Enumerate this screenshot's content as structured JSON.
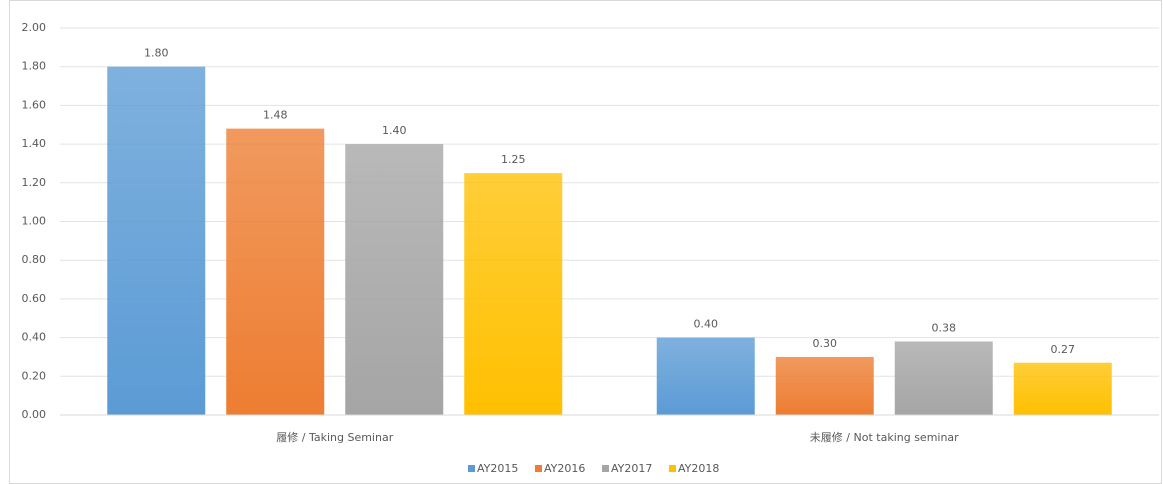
{
  "chart_data": {
    "type": "bar",
    "categories": [
      "履修 / Taking Seminar",
      "未履修 / Not taking seminar"
    ],
    "series": [
      {
        "name": "AY2015",
        "color": "#5b9bd5",
        "values": [
          1.8,
          0.4
        ],
        "value_labels": [
          "1.80",
          "0.40"
        ]
      },
      {
        "name": "AY2016",
        "color": "#ed7d31",
        "values": [
          1.48,
          0.3
        ],
        "value_labels": [
          "1.48",
          "0.30"
        ]
      },
      {
        "name": "AY2017",
        "color": "#a5a5a5",
        "values": [
          1.4,
          0.38
        ],
        "value_labels": [
          "1.40",
          "0.38"
        ]
      },
      {
        "name": "AY2018",
        "color": "#ffc000",
        "values": [
          1.25,
          0.27
        ],
        "value_labels": [
          "1.25",
          "0.27"
        ]
      }
    ],
    "ylim": [
      0,
      2
    ],
    "yticks": [
      {
        "value": 0,
        "label": "0.00"
      },
      {
        "value": 0.2,
        "label": "0.20"
      },
      {
        "value": 0.4,
        "label": "0.40"
      },
      {
        "value": 0.6,
        "label": "0.60"
      },
      {
        "value": 0.8,
        "label": "0.80"
      },
      {
        "value": 1,
        "label": "1.00"
      },
      {
        "value": 1.2,
        "label": "1.20"
      },
      {
        "value": 1.4,
        "label": "1.40"
      },
      {
        "value": 1.6,
        "label": "1.60"
      },
      {
        "value": 1.8,
        "label": "1.80"
      },
      {
        "value": 2,
        "label": "2.00"
      }
    ],
    "grid": true,
    "legend": "bottom"
  }
}
